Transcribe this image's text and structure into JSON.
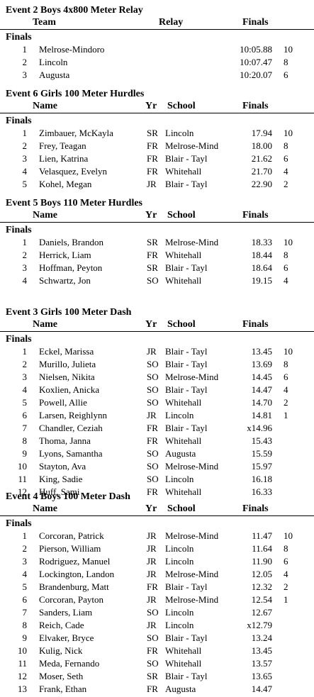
{
  "events": [
    {
      "title": "Event 2  Boys 4x800 Meter Relay",
      "relay": true,
      "headers": {
        "name": "Team",
        "yr": "",
        "school": "Relay",
        "time": "Finals"
      },
      "round": "Finals",
      "rows": [
        {
          "place": "1",
          "name": "Melrose-Mindoro",
          "yr": "",
          "school": "",
          "time": "10:05.88",
          "points": "10"
        },
        {
          "place": "2",
          "name": "Lincoln",
          "yr": "",
          "school": "",
          "time": "10:07.47",
          "points": "8"
        },
        {
          "place": "3",
          "name": "Augusta",
          "yr": "",
          "school": "",
          "time": "10:20.07",
          "points": "6"
        }
      ]
    },
    {
      "title": "Event 6  Girls 100 Meter Hurdles",
      "relay": false,
      "headers": {
        "name": "Name",
        "yr": "Yr",
        "school": "School",
        "time": "Finals"
      },
      "round": "Finals",
      "rows": [
        {
          "place": "1",
          "name": "Zimbauer, McKayla",
          "yr": "SR",
          "school": "Lincoln",
          "time": "17.94",
          "points": "10"
        },
        {
          "place": "2",
          "name": "Frey, Teagan",
          "yr": "FR",
          "school": "Melrose-Mind",
          "time": "18.00",
          "points": "8"
        },
        {
          "place": "3",
          "name": "Lien, Katrina",
          "yr": "FR",
          "school": "Blair - Tayl",
          "time": "21.62",
          "points": "6"
        },
        {
          "place": "4",
          "name": "Velasquez, Evelyn",
          "yr": "FR",
          "school": "Whitehall",
          "time": "21.70",
          "points": "4"
        },
        {
          "place": "5",
          "name": "Kohel, Megan",
          "yr": "JR",
          "school": "Blair - Tayl",
          "time": "22.90",
          "points": "2"
        }
      ]
    },
    {
      "title": "Event 5  Boys 110 Meter Hurdles",
      "relay": false,
      "headers": {
        "name": "Name",
        "yr": "Yr",
        "school": "School",
        "time": "Finals"
      },
      "round": "Finals",
      "rows": [
        {
          "place": "1",
          "name": "Daniels, Brandon",
          "yr": "SR",
          "school": "Melrose-Mind",
          "time": "18.33",
          "points": "10"
        },
        {
          "place": "2",
          "name": "Herrick, Liam",
          "yr": "FR",
          "school": "Whitehall",
          "time": "18.44",
          "points": "8"
        },
        {
          "place": "3",
          "name": "Hoffman, Peyton",
          "yr": "SR",
          "school": "Blair - Tayl",
          "time": "18.64",
          "points": "6"
        },
        {
          "place": "4",
          "name": "Schwartz, Jon",
          "yr": "SO",
          "school": "Whitehall",
          "time": "19.15",
          "points": "4"
        }
      ]
    },
    {
      "title": "Event 3  Girls 100 Meter Dash",
      "relay": false,
      "headers": {
        "name": "Name",
        "yr": "Yr",
        "school": "School",
        "time": "Finals"
      },
      "round": "Finals",
      "rows": [
        {
          "place": "1",
          "name": "Eckel, Marissa",
          "yr": "JR",
          "school": "Blair - Tayl",
          "time": "13.45",
          "points": "10"
        },
        {
          "place": "2",
          "name": "Murillo, Julieta",
          "yr": "SO",
          "school": "Blair - Tayl",
          "time": "13.69",
          "points": "8"
        },
        {
          "place": "3",
          "name": "Nielsen, Nikita",
          "yr": "SO",
          "school": "Melrose-Mind",
          "time": "14.45",
          "points": "6"
        },
        {
          "place": "4",
          "name": "Koxlien, Anicka",
          "yr": "SO",
          "school": "Blair - Tayl",
          "time": "14.47",
          "points": "4"
        },
        {
          "place": "5",
          "name": "Powell, Allie",
          "yr": "SO",
          "school": "Whitehall",
          "time": "14.70",
          "points": "2"
        },
        {
          "place": "6",
          "name": "Larsen, Reighlynn",
          "yr": "JR",
          "school": "Lincoln",
          "time": "14.81",
          "points": "1"
        },
        {
          "place": "7",
          "name": "Chandler, Ceziah",
          "yr": "FR",
          "school": "Blair - Tayl",
          "time": "x14.96",
          "points": ""
        },
        {
          "place": "8",
          "name": "Thoma, Janna",
          "yr": "FR",
          "school": "Whitehall",
          "time": "15.43",
          "points": ""
        },
        {
          "place": "9",
          "name": "Lyons, Samantha",
          "yr": "SO",
          "school": "Augusta",
          "time": "15.59",
          "points": ""
        },
        {
          "place": "10",
          "name": "Stayton, Ava",
          "yr": "SO",
          "school": "Melrose-Mind",
          "time": "15.97",
          "points": ""
        },
        {
          "place": "11",
          "name": "King, Sadie",
          "yr": "SO",
          "school": "Lincoln",
          "time": "16.18",
          "points": ""
        },
        {
          "place": "12",
          "name": "Huff, Sami",
          "yr": "FR",
          "school": "Whitehall",
          "time": "16.33",
          "points": ""
        }
      ]
    },
    {
      "title": "Event 4  Boys 100 Meter Dash",
      "relay": false,
      "headers": {
        "name": "Name",
        "yr": "Yr",
        "school": "School",
        "time": "Finals"
      },
      "round": "Finals",
      "rows": [
        {
          "place": "1",
          "name": "Corcoran, Patrick",
          "yr": "JR",
          "school": "Melrose-Mind",
          "time": "11.47",
          "points": "10"
        },
        {
          "place": "2",
          "name": "Pierson, William",
          "yr": "JR",
          "school": "Lincoln",
          "time": "11.64",
          "points": "8"
        },
        {
          "place": "3",
          "name": "Rodriguez, Manuel",
          "yr": "JR",
          "school": "Lincoln",
          "time": "11.90",
          "points": "6"
        },
        {
          "place": "4",
          "name": "Lockington, Landon",
          "yr": "JR",
          "school": "Melrose-Mind",
          "time": "12.05",
          "points": "4"
        },
        {
          "place": "5",
          "name": "Brandenburg, Matt",
          "yr": "FR",
          "school": "Blair - Tayl",
          "time": "12.32",
          "points": "2"
        },
        {
          "place": "6",
          "name": "Corcoran, Payton",
          "yr": "JR",
          "school": "Melrose-Mind",
          "time": "12.54",
          "points": "1"
        },
        {
          "place": "7",
          "name": "Sanders, Liam",
          "yr": "SO",
          "school": "Lincoln",
          "time": "12.67",
          "points": ""
        },
        {
          "place": "8",
          "name": "Reich, Cade",
          "yr": "JR",
          "school": "Lincoln",
          "time": "x12.79",
          "points": ""
        },
        {
          "place": "9",
          "name": "Elvaker, Bryce",
          "yr": "SO",
          "school": "Blair - Tayl",
          "time": "13.24",
          "points": ""
        },
        {
          "place": "10",
          "name": "Kulig, Nick",
          "yr": "FR",
          "school": "Whitehall",
          "time": "13.45",
          "points": ""
        },
        {
          "place": "11",
          "name": "Meda, Fernando",
          "yr": "SO",
          "school": "Whitehall",
          "time": "13.57",
          "points": ""
        },
        {
          "place": "12",
          "name": "Moser, Seth",
          "yr": "SR",
          "school": "Blair - Tayl",
          "time": "13.65",
          "points": ""
        },
        {
          "place": "13",
          "name": "Frank, Ethan",
          "yr": "FR",
          "school": "Augusta",
          "time": "14.47",
          "points": ""
        }
      ]
    }
  ]
}
